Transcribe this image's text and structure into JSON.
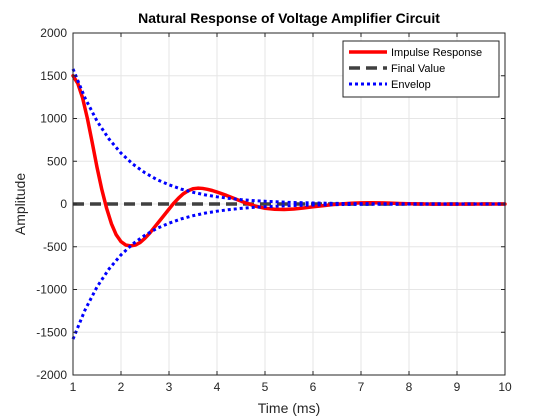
{
  "chart_data": {
    "type": "line",
    "title": "Natural Response of Voltage Amplifier Circuit",
    "xlabel": "Time (ms)",
    "ylabel": "Amplitude",
    "xlim": [
      1,
      10
    ],
    "ylim": [
      -2000,
      2000
    ],
    "xticks": [
      1,
      2,
      3,
      4,
      5,
      6,
      7,
      8,
      9,
      10
    ],
    "yticks": [
      -2000,
      -1500,
      -1000,
      -500,
      0,
      500,
      1000,
      1500,
      2000
    ],
    "grid": true,
    "legend": "top-right",
    "series": [
      {
        "name": "Impulse Response",
        "color": "#ff0000",
        "style": "solid",
        "x": [
          1.0,
          1.1,
          1.2,
          1.3,
          1.4,
          1.5,
          1.6,
          1.7,
          1.8,
          1.9,
          2.0,
          2.1,
          2.2,
          2.3,
          2.4,
          2.5,
          2.6,
          2.7,
          2.8,
          2.9,
          3.0,
          3.1,
          3.2,
          3.3,
          3.4,
          3.5,
          3.6,
          3.7,
          3.8,
          3.9,
          4.0,
          4.2,
          4.4,
          4.6,
          4.8,
          5.0,
          5.2,
          5.4,
          5.6,
          5.8,
          6.0,
          6.2,
          6.4,
          6.6,
          6.8,
          7.0,
          7.2,
          7.4,
          7.6,
          7.8,
          8.0,
          8.5,
          9.0,
          9.5,
          10.0
        ],
        "values": [
          1500,
          1410,
          1240,
          1000,
          720,
          430,
          170,
          -50,
          -230,
          -360,
          -440,
          -480,
          -490,
          -480,
          -450,
          -400,
          -340,
          -270,
          -200,
          -130,
          -60,
          10,
          70,
          120,
          155,
          178,
          185,
          182,
          172,
          158,
          140,
          100,
          55,
          12,
          -25,
          -50,
          -62,
          -64,
          -58,
          -47,
          -33,
          -20,
          -8,
          2,
          9,
          13,
          14,
          13,
          10,
          6,
          3,
          -1,
          -1,
          0,
          0
        ]
      },
      {
        "name": "Final Value",
        "color": "#404040",
        "style": "dashed",
        "x": [
          1,
          10
        ],
        "values": [
          0,
          0
        ]
      },
      {
        "name": "Envelop",
        "color": "#0000ff",
        "style": "dotted",
        "x": [
          1.0,
          1.25,
          1.5,
          1.75,
          2.0,
          2.25,
          2.5,
          2.75,
          3.0,
          3.25,
          3.5,
          3.75,
          4.0,
          4.25,
          4.5,
          4.75,
          5.0,
          5.5,
          6.0,
          6.5,
          7.0,
          7.5,
          8.0,
          8.5,
          9.0,
          9.5,
          10.0
        ],
        "values": [
          1580,
          1240,
          970,
          760,
          595,
          465,
          365,
          285,
          225,
          175,
          137,
          107,
          84,
          66,
          51,
          40,
          32,
          19,
          12,
          7,
          4,
          3,
          2,
          1,
          1,
          0,
          0
        ],
        "mirror": true
      }
    ]
  }
}
